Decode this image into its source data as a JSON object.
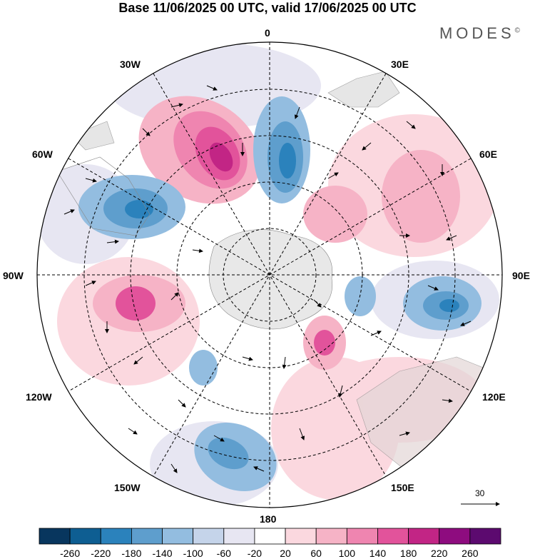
{
  "title": "Base 11/06/2025 00 UTC, valid 17/06/2025 00 UTC",
  "brand": "MODES",
  "brand_mark": "©",
  "longitude_labels": [
    "0",
    "30E",
    "60E",
    "90E",
    "120E",
    "150E",
    "180",
    "150W",
    "120W",
    "90W",
    "60W",
    "30W"
  ],
  "vector_scale_label": "30",
  "colorbar": {
    "ticks": [
      "-260",
      "-220",
      "-180",
      "-140",
      "-100",
      "-60",
      "-20",
      "20",
      "60",
      "100",
      "140",
      "180",
      "220",
      "260"
    ],
    "colors": [
      "#08365e",
      "#0e5e92",
      "#2b82bc",
      "#5e9ecd",
      "#93bde0",
      "#c5d4ea",
      "#e7e6f2",
      "#ffffff",
      "#fbd8df",
      "#f6b3c6",
      "#ef85b0",
      "#e2539b",
      "#c22585",
      "#8e0c7f",
      "#5c0a6f"
    ]
  }
}
